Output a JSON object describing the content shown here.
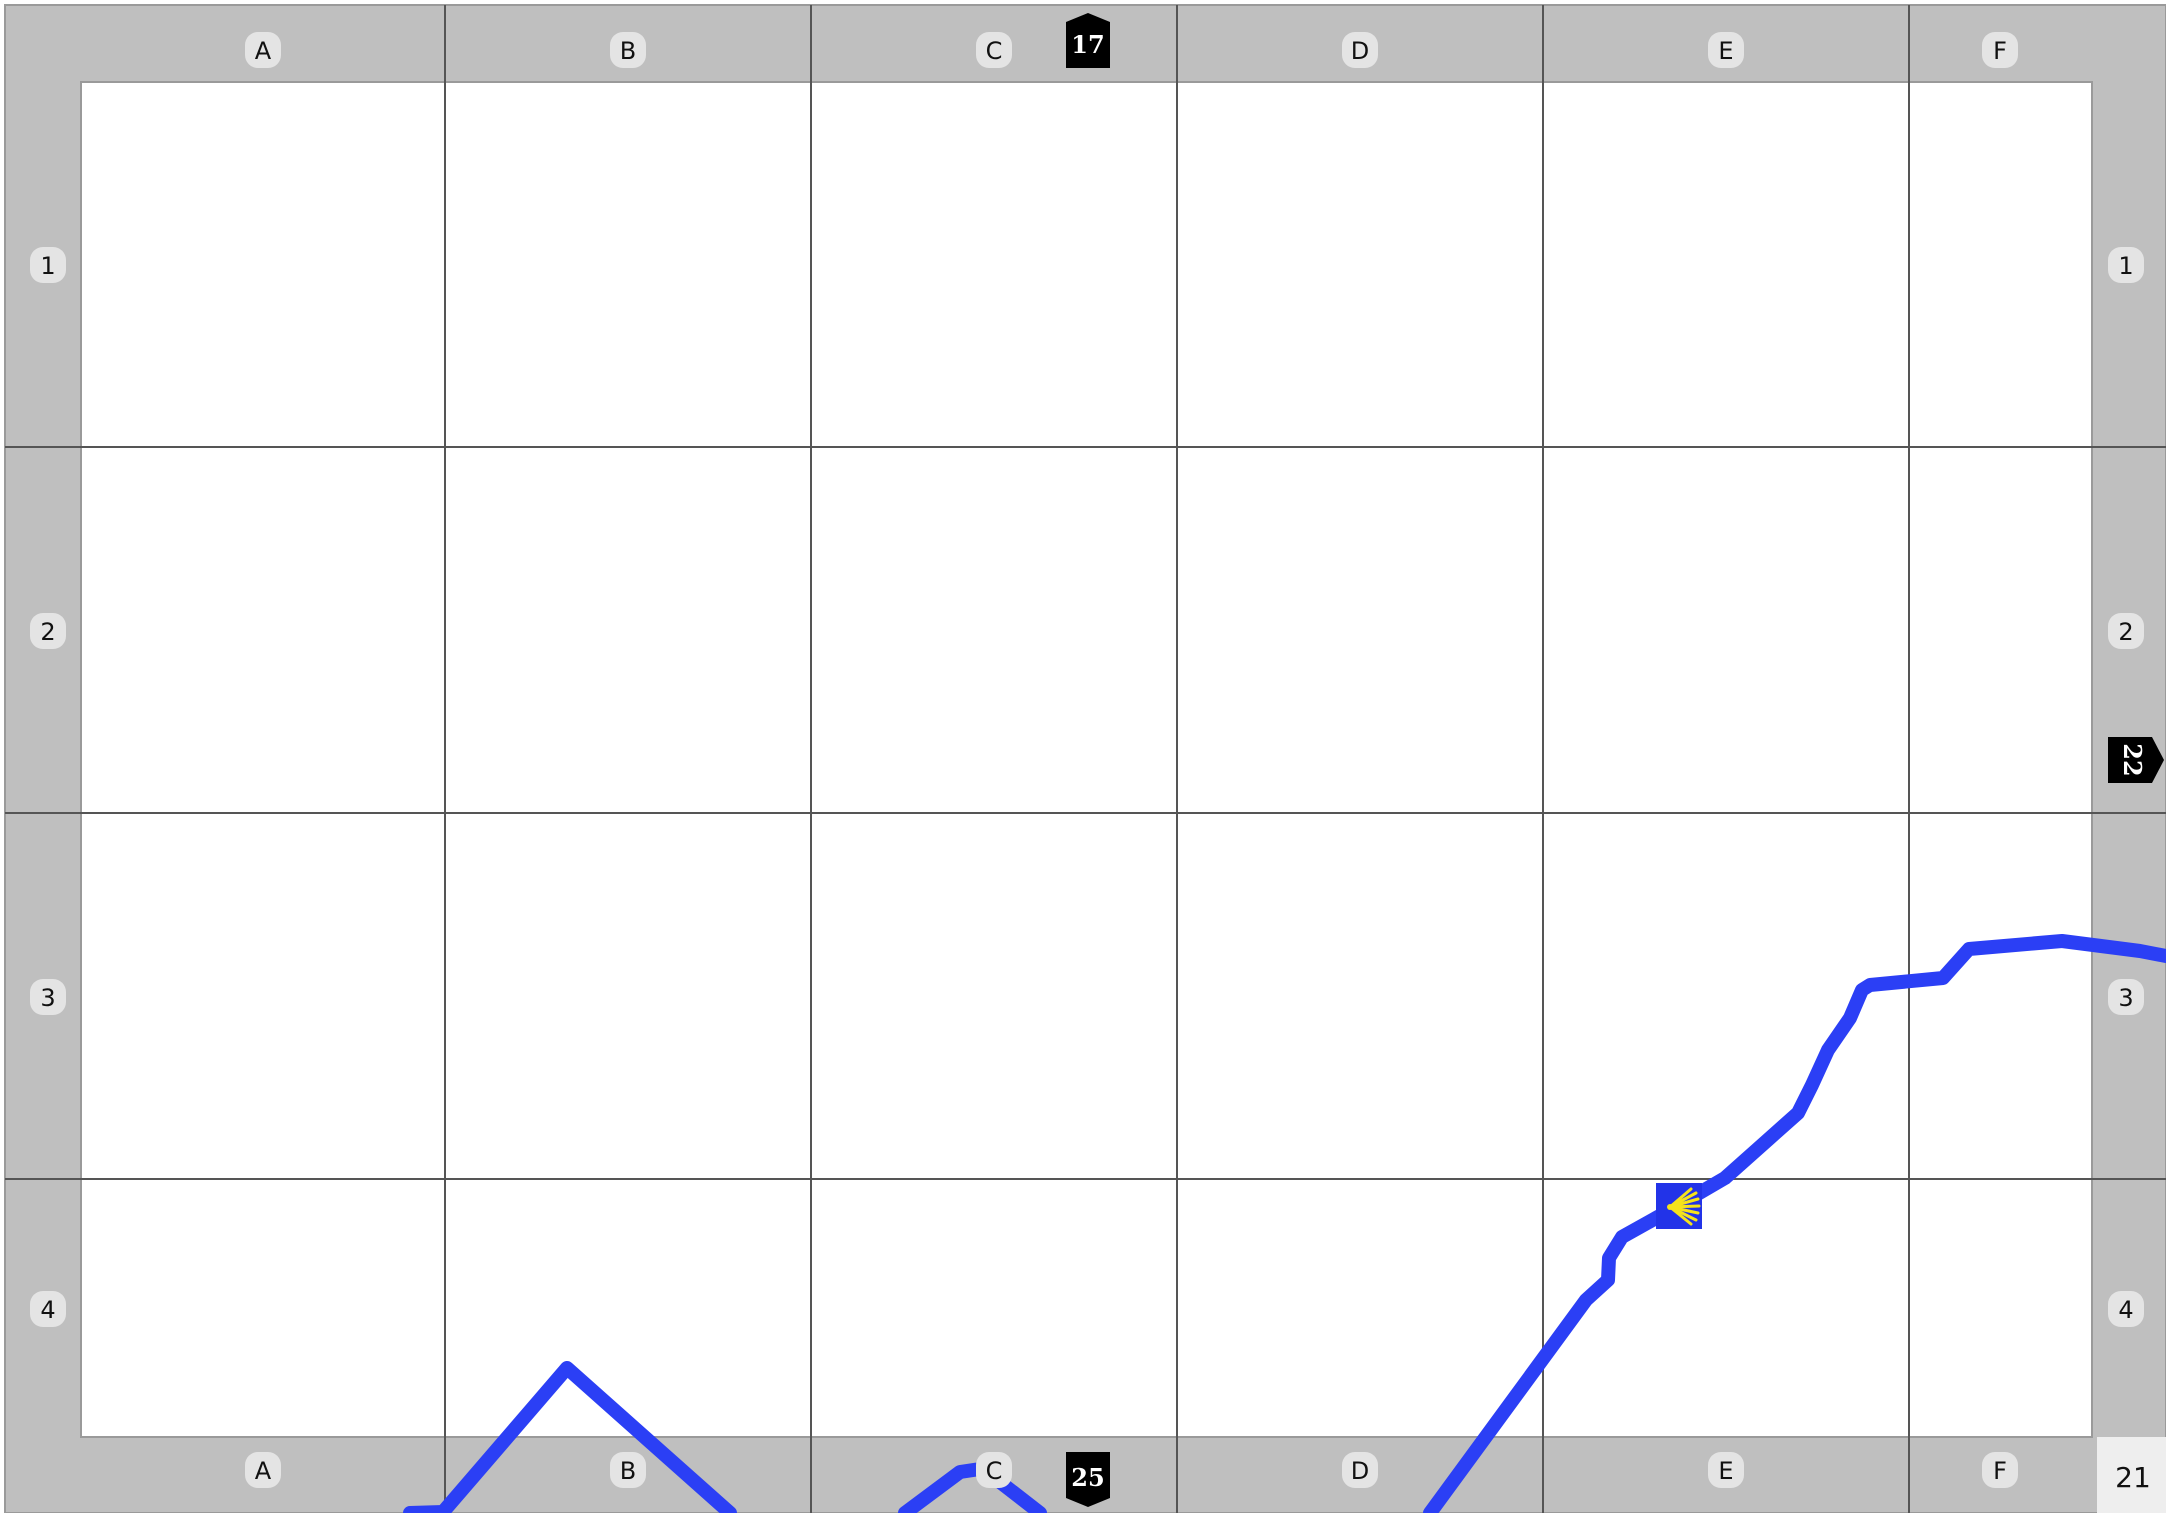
{
  "map": {
    "columns": [
      "A",
      "B",
      "C",
      "D",
      "E",
      "F"
    ],
    "rows": [
      "1",
      "2",
      "3",
      "4"
    ],
    "page_number": "21",
    "adjacent_pages": {
      "top": "17",
      "right": "22",
      "bottom": "25"
    },
    "colors": {
      "frame": "#bfbfbf",
      "label_bubble": "#e4e4e4",
      "grid_line": "#555555",
      "route": "#2b3ff5",
      "marker_bg": "#2233e8",
      "marker_shell": "#f5e21a",
      "page_box": "#eeeeee",
      "ref_tag": "#000000"
    },
    "route_marker_icon": "scallop-shell-icon"
  }
}
